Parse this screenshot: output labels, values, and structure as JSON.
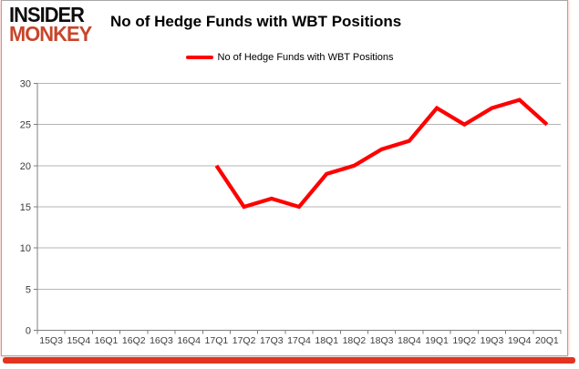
{
  "brand": {
    "line1": "INSIDER",
    "line2": "MONKEY"
  },
  "header": {
    "title": "No of Hedge Funds with WBT Positions"
  },
  "legend": {
    "label": "No of Hedge Funds with WBT Positions"
  },
  "colors": {
    "series_red": "#ff0000",
    "logo_red": "#c7452b",
    "accent_bar_red": "#e23420",
    "gridline": "#b5b5b5",
    "axis": "#7f7f7f",
    "tick_text": "#3d3d3d"
  },
  "chart_data": {
    "type": "line",
    "title": "No of Hedge Funds with WBT Positions",
    "categories": [
      "15Q3",
      "15Q4",
      "16Q1",
      "16Q2",
      "16Q3",
      "16Q4",
      "17Q1",
      "17Q2",
      "17Q3",
      "17Q4",
      "18Q1",
      "18Q2",
      "18Q3",
      "18Q4",
      "19Q1",
      "19Q2",
      "19Q3",
      "19Q4",
      "20Q1"
    ],
    "series": [
      {
        "name": "No of Hedge Funds with WBT Positions",
        "color": "#ff0000",
        "values": [
          null,
          null,
          null,
          null,
          null,
          null,
          20,
          15,
          16,
          15,
          19,
          20,
          22,
          23,
          27,
          25,
          27,
          28,
          25
        ]
      }
    ],
    "xlabel": "",
    "ylabel": "",
    "ylim": [
      0,
      30
    ],
    "y_ticks": [
      0,
      5,
      10,
      15,
      20,
      25,
      30
    ],
    "grid": true,
    "legend_position": "top-center"
  }
}
